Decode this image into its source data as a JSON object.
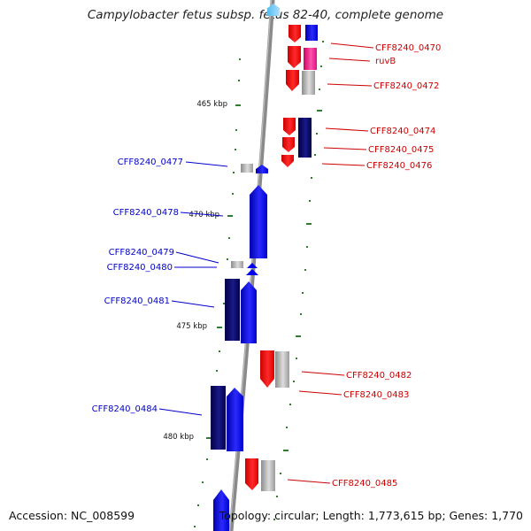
{
  "title": "Campylobacter fetus subsp. fetus 82-40, complete genome",
  "accession_text": "Accession: NC_008599",
  "topology_text": "Topology: circular; Length: 1,773,615 bp; Genes: 1,770",
  "colors": {
    "forward_label": "#0000cc",
    "reverse_label": "#cc0000",
    "backbone": "#8a8a8a",
    "tick": "#2e7d32",
    "blue": "#0000ee",
    "navy": "#000066",
    "red": "#ee0000",
    "gray": "#aaaaaa",
    "magenta": "#ee1188"
  },
  "scale_labels": [
    "465 kbp",
    "470 kbp",
    "475 kbp",
    "480 kbp"
  ],
  "gene_labels": {
    "g0470": "CFF8240_0470",
    "ruvB": "ruvB",
    "g0472": "CFF8240_0472",
    "g0474": "CFF8240_0474",
    "g0475": "CFF8240_0475",
    "g0476": "CFF8240_0476",
    "g0477": "CFF8240_0477",
    "g0478": "CFF8240_0478",
    "g0479": "CFF8240_0479",
    "g0480": "CFF8240_0480",
    "g0481": "CFF8240_0481",
    "g0482": "CFF8240_0482",
    "g0483": "CFF8240_0483",
    "g0484": "CFF8240_0484",
    "g0485": "CFF8240_0485"
  }
}
